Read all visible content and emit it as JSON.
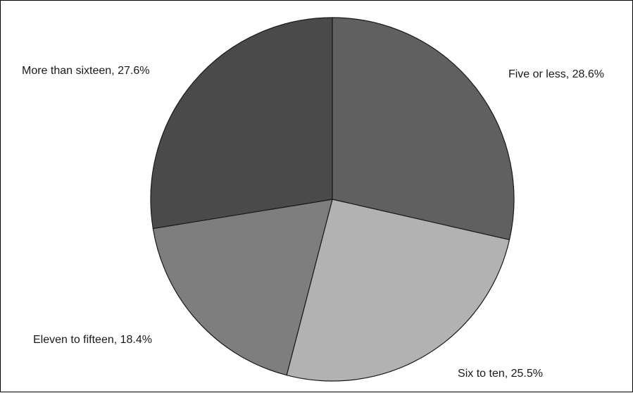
{
  "chart_data": {
    "type": "pie",
    "title": "",
    "slices": [
      {
        "label": "Five or less",
        "value": 28.6,
        "display": "Five or less, 28.6%",
        "color": "#606060"
      },
      {
        "label": "Six to ten",
        "value": 25.5,
        "display": "Six to ten, 25.5%",
        "color": "#b2b2b2"
      },
      {
        "label": "Eleven to fifteen",
        "value": 18.4,
        "display": "Eleven to fifteen, 18.4%",
        "color": "#7e7e7e"
      },
      {
        "label": "More than sixteen",
        "value": 27.6,
        "display": "More than sixteen, 27.6%",
        "color": "#4a4a4a"
      }
    ],
    "start": "12 o'clock",
    "direction": "clockwise",
    "legend": "none",
    "slice_border_color": "#1a1a1a"
  }
}
